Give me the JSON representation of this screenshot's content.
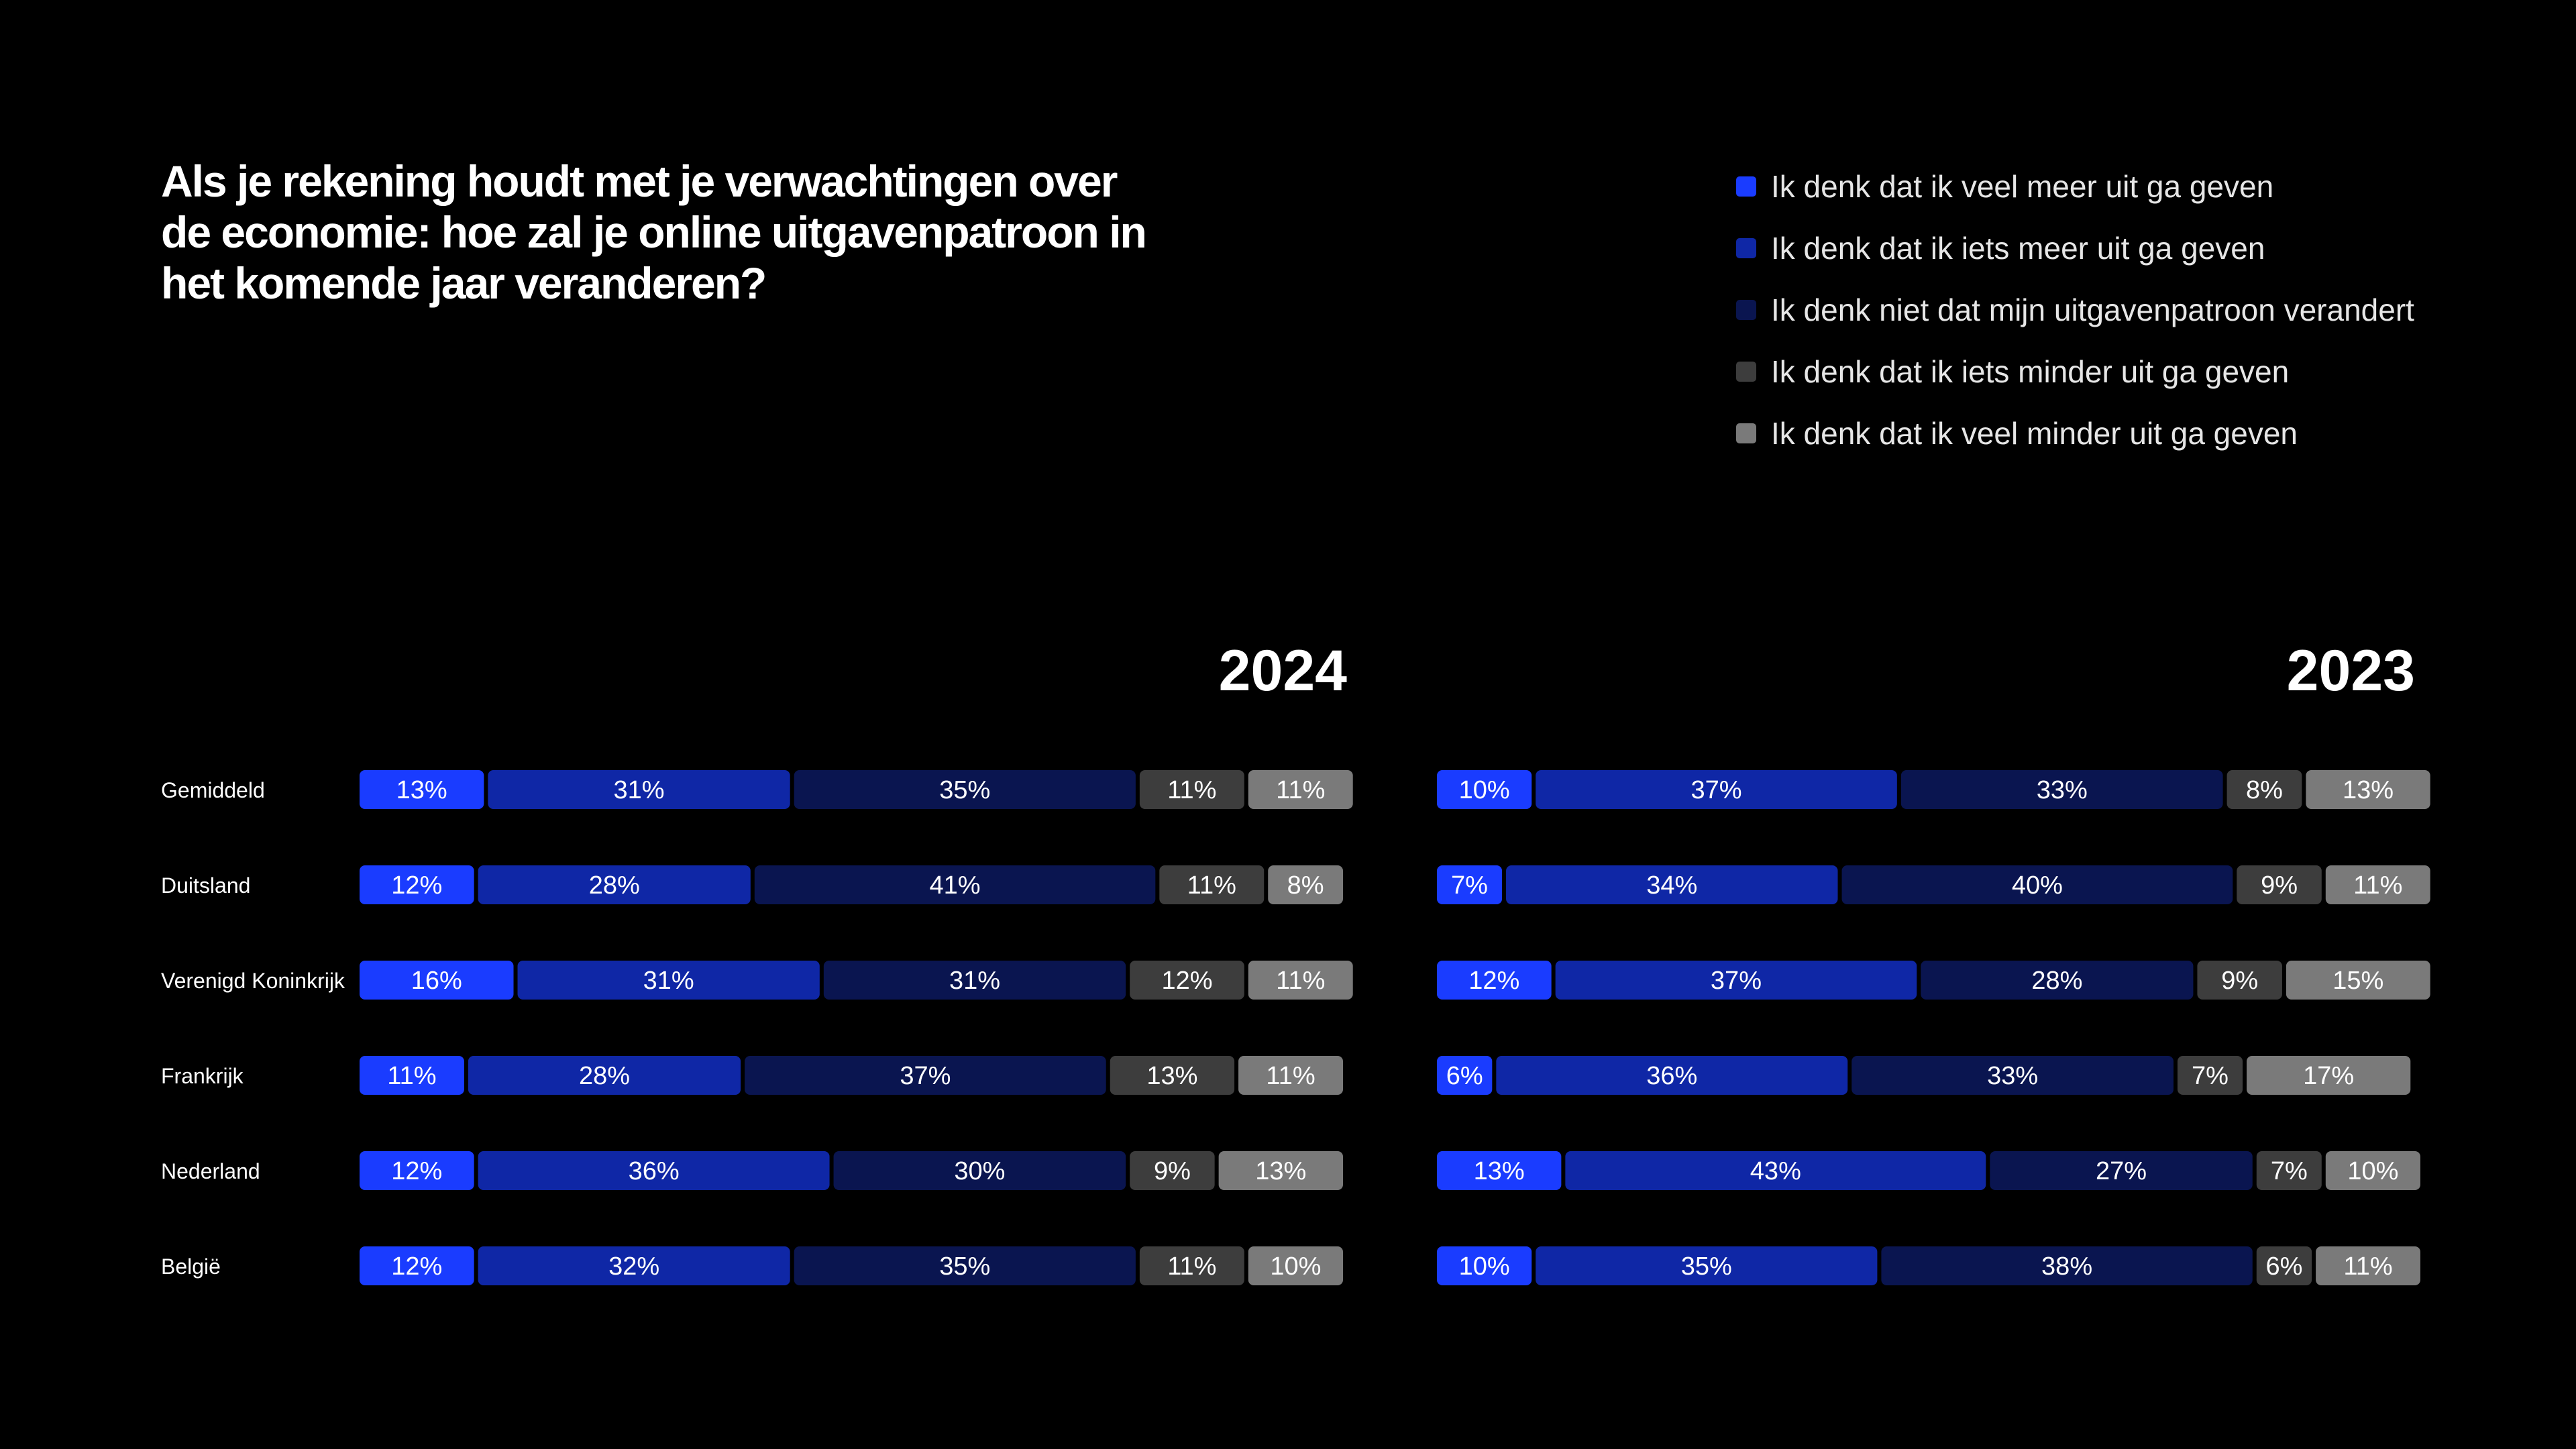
{
  "title": "Als je rekening houdt met je verwachtingen over de economie: hoe zal je online uitgavenpatroon in het komende jaar veranderen?",
  "legend": [
    {
      "label": "Ik denk dat ik veel meer uit ga geven",
      "color": "#1a3cff"
    },
    {
      "label": "Ik denk dat ik iets meer uit ga geven",
      "color": "#0f27a6"
    },
    {
      "label": "Ik denk niet dat mijn uitgavenpatroon verandert",
      "color": "#0a1550"
    },
    {
      "label": "Ik denk dat ik iets minder uit ga geven",
      "color": "#3d3d3d"
    },
    {
      "label": "Ik denk dat ik veel minder uit ga geven",
      "color": "#7a7a7a"
    }
  ],
  "chart_data": [
    {
      "type": "bar",
      "stacked": true,
      "orientation": "horizontal",
      "title": "2024",
      "categories": [
        "Gemiddeld",
        "Duitsland",
        "Verenigd Koninkrijk",
        "Frankrijk",
        "Nederland",
        "België"
      ],
      "series": [
        {
          "name": "Ik denk dat ik veel meer uit ga geven",
          "values": [
            13,
            12,
            16,
            11,
            12,
            12
          ]
        },
        {
          "name": "Ik denk dat ik iets meer uit ga geven",
          "values": [
            31,
            28,
            31,
            28,
            36,
            32
          ]
        },
        {
          "name": "Ik denk niet dat mijn uitgavenpatroon verandert",
          "values": [
            35,
            41,
            31,
            37,
            30,
            35
          ]
        },
        {
          "name": "Ik denk dat ik iets minder uit ga geven",
          "values": [
            11,
            11,
            12,
            13,
            9,
            11
          ]
        },
        {
          "name": "Ik denk dat ik veel minder uit ga geven",
          "values": [
            11,
            8,
            11,
            11,
            13,
            10
          ]
        }
      ],
      "unit": "%"
    },
    {
      "type": "bar",
      "stacked": true,
      "orientation": "horizontal",
      "title": "2023",
      "categories": [
        "Gemiddeld",
        "Duitsland",
        "Verenigd Koninkrijk",
        "Frankrijk",
        "Nederland",
        "België"
      ],
      "series": [
        {
          "name": "Ik denk dat ik veel meer uit ga geven",
          "values": [
            10,
            7,
            12,
            6,
            13,
            10
          ]
        },
        {
          "name": "Ik denk dat ik iets meer uit ga geven",
          "values": [
            37,
            34,
            37,
            36,
            43,
            35
          ]
        },
        {
          "name": "Ik denk niet dat mijn uitgavenpatroon verandert",
          "values": [
            33,
            40,
            28,
            33,
            27,
            38
          ]
        },
        {
          "name": "Ik denk dat ik iets minder uit ga geven",
          "values": [
            8,
            9,
            9,
            7,
            7,
            6
          ]
        },
        {
          "name": "Ik denk dat ik veel minder uit ga geven",
          "values": [
            13,
            11,
            15,
            17,
            10,
            11
          ]
        }
      ],
      "unit": "%"
    }
  ]
}
